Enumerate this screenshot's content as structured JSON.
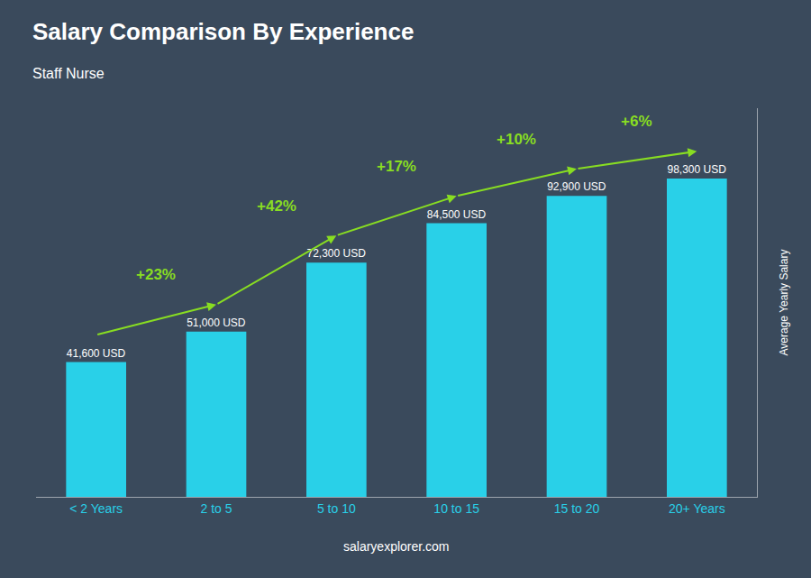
{
  "chart_data": {
    "type": "bar",
    "title": "Salary Comparison By Experience",
    "subtitle": "Staff Nurse",
    "categories": [
      "< 2 Years",
      "2 to 5",
      "5 to 10",
      "10 to 15",
      "15 to 20",
      "20+ Years"
    ],
    "values": [
      41600,
      51000,
      72300,
      84500,
      92900,
      98300
    ],
    "value_labels": [
      "41,600 USD",
      "51,000 USD",
      "72,300 USD",
      "84,500 USD",
      "92,900 USD",
      "98,300 USD"
    ],
    "data_labels": true,
    "color": "#29d0e8",
    "ylabel": "Average Yearly Salary",
    "ylim": [
      0,
      120000
    ],
    "grid": false,
    "tick_labels": "x",
    "annotations": [
      {
        "text": "+23%",
        "from": "< 2 Years",
        "to": "2 to 5",
        "color": "#88dd22"
      },
      {
        "text": "+42%",
        "from": "2 to 5",
        "to": "5 to 10",
        "color": "#88dd22"
      },
      {
        "text": "+17%",
        "from": "5 to 10",
        "to": "10 to 15",
        "color": "#88dd22"
      },
      {
        "text": "+10%",
        "from": "10 to 15",
        "to": "15 to 20",
        "color": "#88dd22"
      },
      {
        "text": "+6%",
        "from": "15 to 20",
        "to": "20+ Years",
        "color": "#88dd22"
      }
    ],
    "footer": "salaryexplorer.com"
  }
}
